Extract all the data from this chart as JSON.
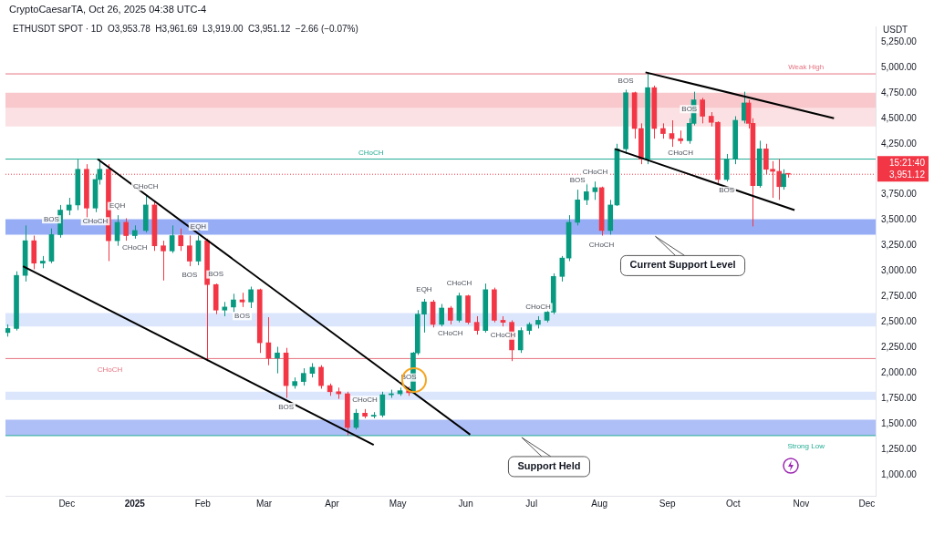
{
  "chart_data": {
    "type": "candlestick",
    "title": "CryptoCaesarTA, Oct 26, 2025 04:38 UTC-4",
    "subtitle": "ETHUSDT SPOT · 1D  O3,953.78  H3,961.69  L3,919.00  C3,951.12  −2.66 (−0.07%)",
    "ylabel": "USDT",
    "x": [
      "2024-11-04",
      "2024-11-08",
      "2024-11-12",
      "2024-11-16",
      "2024-11-20",
      "2024-11-24",
      "2024-11-28",
      "2024-12-02",
      "2024-12-06",
      "2024-12-10",
      "2024-12-14",
      "2024-12-16",
      "2024-12-20",
      "2024-12-24",
      "2024-12-28",
      "2025-01-01",
      "2025-01-06",
      "2025-01-10",
      "2025-01-14",
      "2025-01-18",
      "2025-01-22",
      "2025-01-26",
      "2025-01-30",
      "2025-02-03",
      "2025-02-07",
      "2025-02-11",
      "2025-02-15",
      "2025-02-19",
      "2025-02-23",
      "2025-02-27",
      "2025-03-03",
      "2025-03-07",
      "2025-03-11",
      "2025-03-15",
      "2025-03-19",
      "2025-03-23",
      "2025-03-27",
      "2025-03-31",
      "2025-04-04",
      "2025-04-08",
      "2025-04-12",
      "2025-04-16",
      "2025-04-20",
      "2025-04-24",
      "2025-04-28",
      "2025-05-02",
      "2025-05-06",
      "2025-05-08",
      "2025-05-10",
      "2025-05-13",
      "2025-05-17",
      "2025-05-21",
      "2025-05-25",
      "2025-05-29",
      "2025-06-02",
      "2025-06-06",
      "2025-06-10",
      "2025-06-14",
      "2025-06-18",
      "2025-06-22",
      "2025-06-26",
      "2025-06-30",
      "2025-07-04",
      "2025-07-08",
      "2025-07-11",
      "2025-07-15",
      "2025-07-18",
      "2025-07-22",
      "2025-07-26",
      "2025-07-30",
      "2025-08-02",
      "2025-08-06",
      "2025-08-09",
      "2025-08-13",
      "2025-08-17",
      "2025-08-20",
      "2025-08-23",
      "2025-08-26",
      "2025-08-30",
      "2025-09-03",
      "2025-09-07",
      "2025-09-11",
      "2025-09-13",
      "2025-09-17",
      "2025-09-21",
      "2025-09-24",
      "2025-09-28",
      "2025-10-02",
      "2025-10-06",
      "2025-10-08",
      "2025-10-10",
      "2025-10-13",
      "2025-10-16",
      "2025-10-19",
      "2025-10-22",
      "2025-10-24",
      "2025-10-26"
    ],
    "ohlc": [
      [
        2400,
        2480,
        2360,
        2440
      ],
      [
        2440,
        3000,
        2420,
        2960
      ],
      [
        2960,
        3450,
        2900,
        3300
      ],
      [
        3300,
        3350,
        3020,
        3080
      ],
      [
        3080,
        3150,
        3030,
        3100
      ],
      [
        3100,
        3420,
        3080,
        3360
      ],
      [
        3360,
        3650,
        3330,
        3600
      ],
      [
        3600,
        3720,
        3550,
        3650
      ],
      [
        3650,
        4100,
        3600,
        4000
      ],
      [
        4000,
        4050,
        3520,
        3620
      ],
      [
        3620,
        3950,
        3580,
        3900
      ],
      [
        3900,
        4100,
        3850,
        4000
      ],
      [
        4000,
        4050,
        3100,
        3300
      ],
      [
        3300,
        3550,
        3250,
        3480
      ],
      [
        3480,
        3520,
        3300,
        3350
      ],
      [
        3350,
        3450,
        3320,
        3400
      ],
      [
        3400,
        3740,
        3380,
        3650
      ],
      [
        3650,
        3680,
        3200,
        3250
      ],
      [
        3250,
        3300,
        2910,
        3200
      ],
      [
        3200,
        3450,
        3180,
        3350
      ],
      [
        3350,
        3420,
        3200,
        3250
      ],
      [
        3250,
        3350,
        3050,
        3100
      ],
      [
        3100,
        3350,
        3060,
        3300
      ],
      [
        3300,
        3320,
        2120,
        2870
      ],
      [
        2870,
        2880,
        2580,
        2620
      ],
      [
        2620,
        2700,
        2560,
        2650
      ],
      [
        2650,
        2780,
        2600,
        2720
      ],
      [
        2720,
        2790,
        2650,
        2700
      ],
      [
        2700,
        2850,
        2640,
        2820
      ],
      [
        2820,
        2830,
        2200,
        2300
      ],
      [
        2300,
        2550,
        2080,
        2150
      ],
      [
        2150,
        2260,
        2000,
        2200
      ],
      [
        2200,
        2250,
        1760,
        1880
      ],
      [
        1880,
        1960,
        1850,
        1920
      ],
      [
        1920,
        2050,
        1880,
        2000
      ],
      [
        2000,
        2100,
        1960,
        2060
      ],
      [
        2060,
        2080,
        1850,
        1880
      ],
      [
        1880,
        1900,
        1780,
        1820
      ],
      [
        1820,
        1860,
        1750,
        1800
      ],
      [
        1800,
        1820,
        1390,
        1470
      ],
      [
        1470,
        1650,
        1450,
        1610
      ],
      [
        1610,
        1650,
        1560,
        1580
      ],
      [
        1580,
        1620,
        1560,
        1590
      ],
      [
        1590,
        1820,
        1570,
        1790
      ],
      [
        1790,
        1840,
        1760,
        1800
      ],
      [
        1800,
        1860,
        1780,
        1830
      ],
      [
        1830,
        1870,
        1780,
        1810
      ],
      [
        1810,
        2210,
        1800,
        2200
      ],
      [
        2200,
        2620,
        2180,
        2580
      ],
      [
        2580,
        2730,
        2400,
        2700
      ],
      [
        2700,
        2720,
        2450,
        2480
      ],
      [
        2480,
        2680,
        2460,
        2640
      ],
      [
        2640,
        2660,
        2480,
        2520
      ],
      [
        2520,
        2790,
        2500,
        2760
      ],
      [
        2760,
        2770,
        2480,
        2500
      ],
      [
        2500,
        2560,
        2380,
        2420
      ],
      [
        2420,
        2880,
        2400,
        2820
      ],
      [
        2820,
        2840,
        2500,
        2520
      ],
      [
        2520,
        2560,
        2460,
        2500
      ],
      [
        2500,
        2520,
        2120,
        2230
      ],
      [
        2230,
        2450,
        2200,
        2420
      ],
      [
        2420,
        2500,
        2380,
        2480
      ],
      [
        2480,
        2560,
        2440,
        2520
      ],
      [
        2520,
        2620,
        2500,
        2600
      ],
      [
        2600,
        2980,
        2580,
        2950
      ],
      [
        2950,
        3150,
        2900,
        3130
      ],
      [
        3130,
        3550,
        3100,
        3480
      ],
      [
        3480,
        3800,
        3450,
        3700
      ],
      [
        3700,
        3860,
        3650,
        3780
      ],
      [
        3780,
        3880,
        3700,
        3820
      ],
      [
        3820,
        3830,
        3350,
        3400
      ],
      [
        3400,
        3700,
        3360,
        3650
      ],
      [
        3650,
        4250,
        3640,
        4200
      ],
      [
        4200,
        4780,
        4150,
        4750
      ],
      [
        4750,
        4760,
        4300,
        4400
      ],
      [
        4400,
        4450,
        4050,
        4100
      ],
      [
        4100,
        4950,
        4050,
        4800
      ],
      [
        4800,
        4820,
        4300,
        4400
      ],
      [
        4400,
        4450,
        4300,
        4350
      ],
      [
        4350,
        4480,
        4220,
        4300
      ],
      [
        4300,
        4380,
        4250,
        4280
      ],
      [
        4280,
        4500,
        4250,
        4450
      ],
      [
        4450,
        4760,
        4430,
        4680
      ],
      [
        4680,
        4700,
        4450,
        4520
      ],
      [
        4520,
        4560,
        4420,
        4460
      ],
      [
        4460,
        4470,
        3850,
        3900
      ],
      [
        3900,
        4150,
        3880,
        4100
      ],
      [
        4100,
        4520,
        4050,
        4480
      ],
      [
        4480,
        4760,
        4450,
        4650
      ],
      [
        4650,
        4680,
        4400,
        4450
      ],
      [
        4450,
        4500,
        3440,
        3840
      ],
      [
        3840,
        4280,
        3820,
        4200
      ],
      [
        4200,
        4250,
        3950,
        4000
      ],
      [
        4000,
        4080,
        3720,
        3980
      ],
      [
        3980,
        4100,
        3700,
        3830
      ],
      [
        3830,
        4000,
        3800,
        3953.78
      ],
      [
        3953.78,
        3961.69,
        3919,
        3951.12
      ]
    ],
    "colors": [
      "#089981",
      "#089981",
      "#089981",
      "#f23645",
      "#089981",
      "#089981",
      "#089981",
      "#089981",
      "#089981",
      "#f23645",
      "#089981",
      "#089981",
      "#f23645",
      "#089981",
      "#f23645",
      "#089981",
      "#089981",
      "#f23645",
      "#f23645",
      "#089981",
      "#f23645",
      "#f23645",
      "#089981",
      "#f23645",
      "#f23645",
      "#089981",
      "#089981",
      "#f23645",
      "#089981",
      "#f23645",
      "#f23645",
      "#089981",
      "#f23645",
      "#089981",
      "#089981",
      "#089981",
      "#f23645",
      "#f23645",
      "#f23645",
      "#f23645",
      "#089981",
      "#f23645",
      "#089981",
      "#089981",
      "#089981",
      "#089981",
      "#f23645",
      "#089981",
      "#089981",
      "#089981",
      "#f23645",
      "#089981",
      "#f23645",
      "#089981",
      "#f23645",
      "#f23645",
      "#089981",
      "#f23645",
      "#f23645",
      "#f23645",
      "#089981",
      "#089981",
      "#089981",
      "#089981",
      "#089981",
      "#089981",
      "#089981",
      "#089981",
      "#089981",
      "#089981",
      "#f23645",
      "#089981",
      "#089981",
      "#089981",
      "#f23645",
      "#f23645",
      "#089981",
      "#f23645",
      "#f23645",
      "#f23645",
      "#f23645",
      "#089981",
      "#089981",
      "#f23645",
      "#f23645",
      "#f23645",
      "#089981",
      "#089981",
      "#089981",
      "#f23645",
      "#f23645",
      "#089981",
      "#f23645",
      "#f23645",
      "#f23645",
      "#089981",
      "#f23645"
    ],
    "series": [
      {
        "type": "line",
        "color": "#000000",
        "x": [
          "2024-11-11",
          "2025-04-20"
        ],
        "values": [
          3050,
          1300
        ]
      },
      {
        "type": "line",
        "color": "#000000",
        "x": [
          "2024-12-15",
          "2025-06-03"
        ],
        "values": [
          4100,
          1400
        ]
      },
      {
        "type": "line",
        "color": "#000000",
        "x": [
          "2025-08-22",
          "2025-11-16"
        ],
        "values": [
          4950,
          4500
        ]
      },
      {
        "type": "line",
        "color": "#000000",
        "x": [
          "2025-08-08",
          "2025-10-29"
        ],
        "values": [
          4200,
          3600
        ]
      }
    ],
    "xlim": [
      "2024-11-03",
      "2025-12-05"
    ],
    "xticks": [
      {
        "value": "2024-12-01",
        "label": "Dec"
      },
      {
        "value": "2025-01-01",
        "label": "2025"
      },
      {
        "value": "2025-02-01",
        "label": "Feb"
      },
      {
        "value": "2025-03-01",
        "label": "Mar"
      },
      {
        "value": "2025-04-01",
        "label": "Apr"
      },
      {
        "value": "2025-05-01",
        "label": "May"
      },
      {
        "value": "2025-06-01",
        "label": "Jun"
      },
      {
        "value": "2025-07-01",
        "label": "Jul"
      },
      {
        "value": "2025-08-01",
        "label": "Aug"
      },
      {
        "value": "2025-09-01",
        "label": "Sep"
      },
      {
        "value": "2025-10-01",
        "label": "Oct"
      },
      {
        "value": "2025-11-01",
        "label": "Nov"
      },
      {
        "value": "2025-12-01",
        "label": "Dec"
      }
    ],
    "ylim": [
      800,
      5400
    ],
    "yticks": [
      {
        "value": 1000,
        "label": "1,000.00"
      },
      {
        "value": 1250,
        "label": "1,250.00"
      },
      {
        "value": 1500,
        "label": "1,500.00"
      },
      {
        "value": 1750,
        "label": "1,750.00"
      },
      {
        "value": 2000,
        "label": "2,000.00"
      },
      {
        "value": 2250,
        "label": "2,250.00"
      },
      {
        "value": 2500,
        "label": "2,500.00"
      },
      {
        "value": 2750,
        "label": "2,750.00"
      },
      {
        "value": 3000,
        "label": "3,000.00"
      },
      {
        "value": 3250,
        "label": "3,250.00"
      },
      {
        "value": 3500,
        "label": "3,500.00"
      },
      {
        "value": 3750,
        "label": "3,750.00"
      },
      {
        "value": 4250,
        "label": "4,250.00"
      },
      {
        "value": 4500,
        "label": "4,500.00"
      },
      {
        "value": 4750,
        "label": "4,750.00"
      },
      {
        "value": 5000,
        "label": "5,000.00"
      },
      {
        "value": 5250,
        "label": "5,250.00"
      }
    ],
    "bands": [
      {
        "axis": "y",
        "from": 1390,
        "to": 1545,
        "color": "#aebff7"
      },
      {
        "axis": "y",
        "from": 1740,
        "to": 1820,
        "color": "#dbe6fc"
      },
      {
        "axis": "y",
        "from": 2460,
        "to": 2590,
        "color": "#dbe6fc"
      },
      {
        "axis": "y",
        "from": 3360,
        "to": 3510,
        "color": "#96adf5"
      },
      {
        "axis": "y",
        "from": 4420,
        "to": 4600,
        "color": "#fbe1e3"
      },
      {
        "axis": "y",
        "from": 4600,
        "to": 4750,
        "color": "#f8c8cc"
      }
    ],
    "ref_lines": [
      {
        "axis": "y",
        "value": 4100,
        "label": "CHoCH",
        "color": "#22ab94"
      },
      {
        "axis": "y",
        "value": 2145,
        "label": "CHoCH",
        "color": "#e57380"
      },
      {
        "axis": "y",
        "value": 4935,
        "label": "Weak High",
        "color": "#e57380"
      },
      {
        "axis": "y",
        "value": 1390,
        "label": "Strong Low",
        "color": "#22ab94"
      },
      {
        "axis": "y",
        "value": 3951.12,
        "label": "3,951.12",
        "color": "#f23645",
        "line_style": "dotted"
      }
    ],
    "annotations": [
      "15:21:40",
      {
        "text": "BOS",
        "x": "2024-11-24",
        "y": 3420
      },
      {
        "text": "EQH",
        "x": "2024-12-24",
        "y": 3550
      },
      {
        "text": "CHoCH",
        "x": "2025-01-06",
        "y": 3740
      },
      {
        "text": "CHoCH",
        "x": "2024-12-14",
        "y": 3580
      },
      {
        "text": "CHoCH",
        "x": "2025-01-01",
        "y": 3320
      },
      {
        "text": "EQH",
        "x": "2025-01-30",
        "y": 3350
      },
      {
        "text": "BOS",
        "x": "2025-01-26",
        "y": 3050
      },
      {
        "text": "BOS",
        "x": "2025-02-07",
        "y": 2880
      },
      {
        "text": "BOS",
        "x": "2025-02-19",
        "y": 2650
      },
      {
        "text": "BOS",
        "x": "2025-03-11",
        "y": 1760
      },
      {
        "text": "CHoCH",
        "x": "2025-04-16",
        "y": 1650
      },
      {
        "text": "BOS",
        "x": "2025-05-06",
        "y": 1870
      },
      {
        "text": "EQH",
        "x": "2025-05-13",
        "y": 2730
      },
      {
        "text": "CHoCH",
        "x": "2025-05-29",
        "y": 2790
      },
      {
        "text": "CHoCH",
        "x": "2025-05-25",
        "y": 2480
      },
      {
        "text": "CHoCH",
        "x": "2025-06-18",
        "y": 2460
      },
      {
        "text": "CHoCH",
        "x": "2025-07-04",
        "y": 2560
      },
      {
        "text": "BOS",
        "x": "2025-07-22",
        "y": 3800
      },
      {
        "text": "CHoCH",
        "x": "2025-07-30",
        "y": 3880
      },
      {
        "text": "CHoCH",
        "x": "2025-08-02",
        "y": 3350
      },
      {
        "text": "BOS",
        "x": "2025-08-13",
        "y": 4780
      },
      {
        "text": "BOS",
        "x": "2025-09-11",
        "y": 4500
      },
      {
        "text": "CHoCH",
        "x": "2025-09-07",
        "y": 4250
      },
      {
        "text": "BOS",
        "x": "2025-09-28",
        "y": 3880
      },
      {
        "text": "Current Support Level",
        "x": "2025-09-08",
        "y": 3360
      },
      {
        "text": "Support Held",
        "x": "2025-07-09",
        "y": 1390
      }
    ],
    "grid": false,
    "legend": false
  }
}
